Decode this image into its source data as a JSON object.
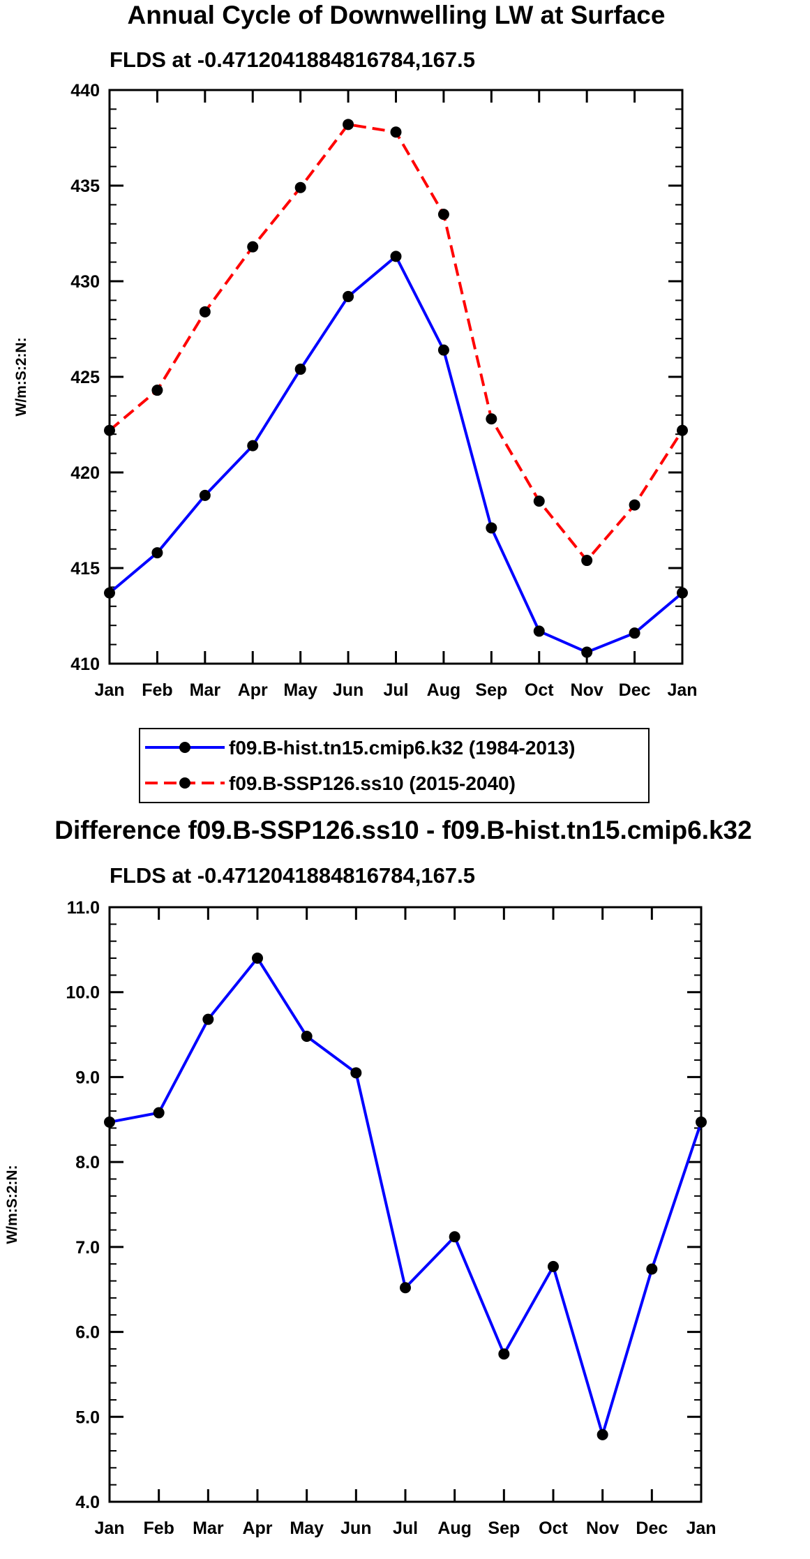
{
  "chart_data": [
    {
      "type": "line",
      "title": "Annual Cycle of Downwelling LW at Surface",
      "subtitle": "FLDS at -0.4712041884816784,167.5",
      "xlabel": "",
      "ylabel": "W/m:S:2:N:",
      "categories": [
        "Jan",
        "Feb",
        "Mar",
        "Apr",
        "May",
        "Jun",
        "Jul",
        "Aug",
        "Sep",
        "Oct",
        "Nov",
        "Dec",
        "Jan"
      ],
      "ylim": [
        410,
        440
      ],
      "yticks": [
        "410",
        "415",
        "420",
        "425",
        "430",
        "435",
        "440"
      ],
      "series": [
        {
          "name": "f09.B-hist.tn15.cmip6.k32 (1984-2013)",
          "color": "#0000ff",
          "dash": "solid",
          "values": [
            413.7,
            415.8,
            418.8,
            421.4,
            425.4,
            429.2,
            431.3,
            426.4,
            417.1,
            411.7,
            410.6,
            411.6,
            413.7
          ]
        },
        {
          "name": "f09.B-SSP126.ss10 (2015-2040)",
          "color": "#ff0000",
          "dash": "dashed",
          "values": [
            422.2,
            424.3,
            428.4,
            431.8,
            434.9,
            438.2,
            437.8,
            433.5,
            422.8,
            418.5,
            415.4,
            418.3,
            422.2
          ]
        }
      ],
      "legend_position": "below"
    },
    {
      "type": "line",
      "title": "Difference f09.B-SSP126.ss10 - f09.B-hist.tn15.cmip6.k32",
      "subtitle": "FLDS at -0.4712041884816784,167.5",
      "xlabel": "",
      "ylabel": "W/m:S:2:N:",
      "categories": [
        "Jan",
        "Feb",
        "Mar",
        "Apr",
        "May",
        "Jun",
        "Jul",
        "Aug",
        "Sep",
        "Oct",
        "Nov",
        "Dec",
        "Jan"
      ],
      "ylim": [
        4.0,
        11.0
      ],
      "yticks": [
        "4.0",
        "5.0",
        "6.0",
        "7.0",
        "8.0",
        "9.0",
        "10.0",
        "11.0"
      ],
      "series": [
        {
          "name": "Difference",
          "color": "#0000ff",
          "dash": "solid",
          "values": [
            8.47,
            8.58,
            9.68,
            10.4,
            9.48,
            9.05,
            6.52,
            7.12,
            5.74,
            6.77,
            4.79,
            6.74,
            8.47
          ]
        }
      ]
    }
  ]
}
